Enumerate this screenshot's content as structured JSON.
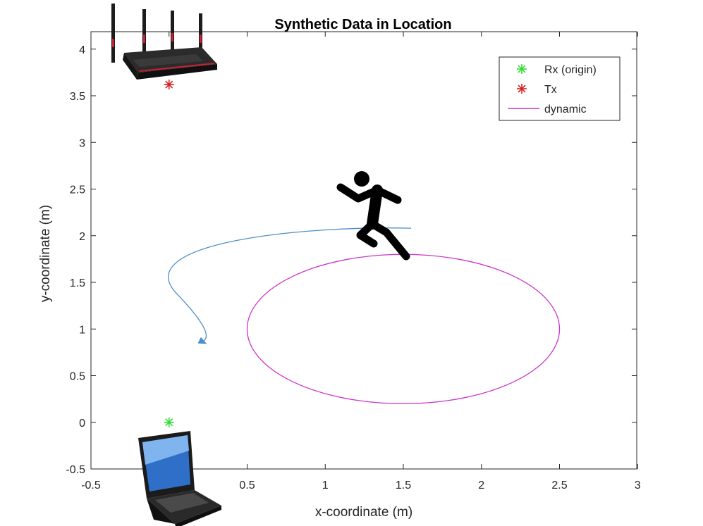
{
  "chart_data": {
    "type": "scatter",
    "title": "Synthetic Data in Location",
    "xlabel": "x-coordinate (m)",
    "ylabel": "y-coordinate (m)",
    "xlim": [
      -0.5,
      3
    ],
    "ylim": [
      -0.5,
      4.1
    ],
    "xticks": [
      -0.5,
      0,
      0.5,
      1,
      1.5,
      2,
      2.5,
      3
    ],
    "yticks": [
      -0.5,
      0,
      0.5,
      1,
      1.5,
      2,
      2.5,
      3,
      3.5,
      4
    ],
    "xtick_labels": [
      "-0.5",
      "",
      "0.5",
      "1",
      "1.5",
      "2",
      "2.5",
      "3"
    ],
    "ytick_labels": [
      "-0.5",
      "0",
      "0.5",
      "1",
      "1.5",
      "2",
      "2.5",
      "3",
      "3.5",
      "4"
    ],
    "grid": false,
    "legend_position": "top-right",
    "series": [
      {
        "name": "Rx (origin)",
        "marker": "asterisk",
        "color": "#33dd33",
        "x": [
          0
        ],
        "y": [
          0
        ]
      },
      {
        "name": "Tx",
        "marker": "asterisk",
        "color": "#d92020",
        "x": [
          0
        ],
        "y": [
          3.62
        ]
      },
      {
        "name": "dynamic",
        "marker": "line",
        "color": "#cc33cc",
        "shape": "ellipse",
        "center": [
          1.5,
          1.0
        ],
        "radius_x": 1.0,
        "radius_y": 0.8
      }
    ],
    "annotations": [
      {
        "kind": "curved-arrow",
        "color": "#4d8fc9",
        "from": [
          1.55,
          2.08
        ],
        "to": [
          0.23,
          0.85
        ]
      }
    ]
  },
  "icons": {
    "router": "router-icon",
    "laptop": "laptop-icon",
    "runner": "running-person-icon"
  }
}
